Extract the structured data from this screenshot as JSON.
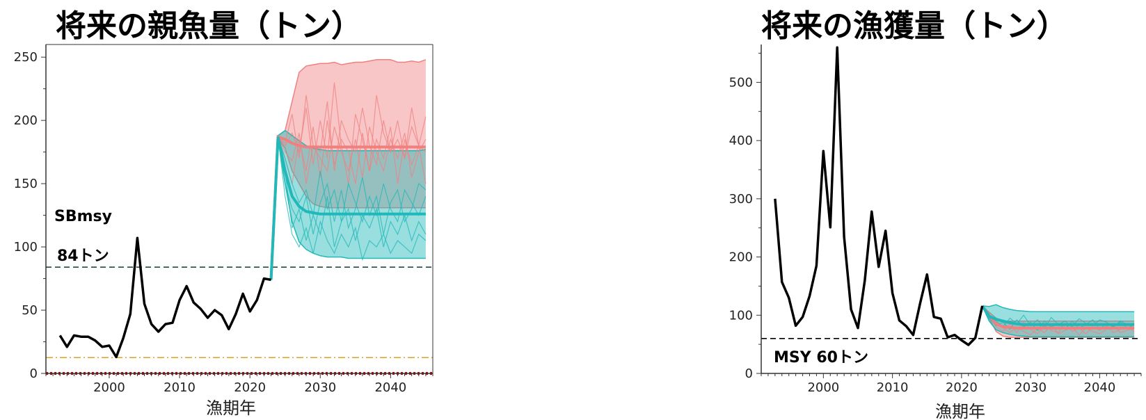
{
  "chart_data": [
    {
      "type": "line",
      "title": "将来の親魚量（トン）",
      "xlabel": "漁期年",
      "ylabel": "",
      "xlim": [
        1991,
        2046
      ],
      "ylim": [
        0,
        260
      ],
      "xticks": [
        2000,
        2010,
        2020,
        2030,
        2040
      ],
      "yticks": [
        0,
        50,
        100,
        150,
        200,
        250
      ],
      "grid": false,
      "annotations": [
        {
          "text": "SBmsy",
          "x": 1992,
          "y": 117
        },
        {
          "text": "84トン",
          "x": 1992,
          "y": 94
        }
      ],
      "ref_lines": [
        {
          "y": 84,
          "style": "dashed",
          "color": "#1f4e3d"
        },
        {
          "y": 12.5,
          "style": "dashdot",
          "color": "#e0a020"
        },
        {
          "y": 0,
          "style": "dotted",
          "color": "#cc0000"
        }
      ],
      "historical": {
        "x": [
          1993,
          1994,
          1995,
          1996,
          1997,
          1998,
          1999,
          2000,
          2001,
          2002,
          2003,
          2004,
          2005,
          2006,
          2007,
          2008,
          2009,
          2010,
          2011,
          2012,
          2013,
          2014,
          2015,
          2016,
          2017,
          2018,
          2019,
          2020,
          2021,
          2022,
          2023
        ],
        "y": [
          30,
          21,
          30,
          29,
          29,
          26,
          21,
          22,
          13,
          28,
          47,
          107,
          55,
          39,
          33,
          39,
          40,
          58,
          69,
          56,
          51,
          44,
          50,
          46,
          35,
          47,
          63,
          49,
          58,
          75,
          74
        ]
      },
      "projection_x": [
        2023,
        2024,
        2025,
        2026,
        2027,
        2028,
        2029,
        2030,
        2031,
        2032,
        2033,
        2034,
        2035,
        2036,
        2037,
        2038,
        2039,
        2040,
        2041,
        2042,
        2043,
        2044,
        2045
      ],
      "series": [
        {
          "name": "",
          "color": "#f08080",
          "median": [
            74,
            187,
            185,
            182,
            180,
            179,
            179,
            179,
            179,
            179,
            179,
            179,
            179,
            179,
            179,
            179,
            179,
            179,
            179,
            179,
            179,
            179,
            179
          ],
          "upper": [
            74,
            188,
            192,
            215,
            238,
            243,
            244,
            245,
            245,
            246,
            244,
            245,
            246,
            246,
            247,
            248,
            248,
            248,
            246,
            246,
            247,
            246,
            248
          ],
          "lower": [
            74,
            186,
            178,
            160,
            150,
            140,
            134,
            132,
            131,
            131,
            131,
            131,
            131,
            131,
            131,
            131,
            131,
            131,
            131,
            131,
            131,
            131,
            131
          ],
          "traces": [
            [
              74,
              187,
              180,
              190,
              175,
              210,
              165,
              200,
              170,
              230,
              180,
              150,
              205,
              185,
              160,
              220,
              190,
              175,
              200,
              170,
              210,
              180,
              203
            ],
            [
              74,
              187,
              170,
              150,
              185,
              160,
              195,
              155,
              200,
              165,
              185,
              175,
              150,
              190,
              160,
              185,
              170,
              195,
              150,
              185,
              165,
              180,
              150
            ],
            [
              74,
              187,
              182,
              205,
              170,
              220,
              180,
              175,
              215,
              160,
              200,
              185,
              175,
              210,
              180,
              165,
              200,
              175,
              185,
              170,
              195,
              180,
              175
            ],
            [
              74,
              187,
              175,
              168,
              190,
              150,
              180,
              170,
              160,
              195,
              175,
              160,
              185,
              155,
              195,
              175,
              160,
              185,
              170,
              190,
              155,
              175,
              185
            ]
          ]
        },
        {
          "name": "",
          "color": "#20b8b8",
          "median": [
            74,
            187,
            160,
            140,
            132,
            128,
            127,
            126,
            126,
            126,
            126,
            126,
            126,
            126,
            126,
            126,
            126,
            126,
            126,
            126,
            126,
            126,
            126
          ],
          "upper": [
            74,
            188,
            192,
            188,
            184,
            180,
            178,
            177,
            176,
            176,
            176,
            176,
            176,
            176,
            176,
            176,
            176,
            176,
            176,
            176,
            176,
            176,
            177
          ],
          "lower": [
            74,
            186,
            150,
            120,
            104,
            98,
            95,
            93,
            92,
            92,
            92,
            91,
            91,
            91,
            91,
            91,
            91,
            91,
            91,
            91,
            91,
            91,
            91
          ],
          "traces": [
            [
              74,
              187,
              150,
              130,
              120,
              140,
              110,
              135,
              150,
              120,
              145,
              115,
              130,
              155,
              125,
              140,
              110,
              135,
              145,
              120,
              130,
              150,
              145
            ],
            [
              74,
              187,
              160,
              115,
              130,
              105,
              125,
              110,
              140,
              100,
              120,
              130,
              105,
              125,
              115,
              130,
              100,
              120,
              110,
              125,
              105,
              120,
              110
            ],
            [
              74,
              187,
              170,
              150,
              135,
              145,
              125,
              160,
              130,
              145,
              120,
              150,
              135,
              120,
              140,
              125,
              150,
              130,
              120,
              145,
              135,
              125,
              140
            ],
            [
              74,
              187,
              140,
              110,
              100,
              115,
              95,
              120,
              105,
              95,
              110,
              100,
              115,
              90,
              105,
              100,
              110,
              95,
              105,
              100,
              95,
              110,
              105
            ]
          ]
        }
      ]
    },
    {
      "type": "line",
      "title": "将来の漁獲量（トン）",
      "xlabel": "漁期年",
      "ylabel": "",
      "xlim": [
        1991,
        2046
      ],
      "ylim": [
        0,
        565
      ],
      "xticks": [
        2000,
        2010,
        2020,
        2030,
        2040
      ],
      "yticks": [
        0,
        100,
        200,
        300,
        400,
        500
      ],
      "grid": false,
      "annotations": [
        {
          "text": "MSY 60トン",
          "x": 1992,
          "y": 27
        }
      ],
      "ref_lines": [
        {
          "y": 60,
          "style": "dashed",
          "color": "#000000"
        }
      ],
      "historical": {
        "x": [
          1993,
          1994,
          1995,
          1996,
          1997,
          1998,
          1999,
          2000,
          2001,
          2002,
          2003,
          2004,
          2005,
          2006,
          2007,
          2008,
          2009,
          2010,
          2011,
          2012,
          2013,
          2014,
          2015,
          2016,
          2017,
          2018,
          2019,
          2020,
          2021,
          2022,
          2023
        ],
        "y": [
          300,
          157,
          130,
          82,
          97,
          133,
          185,
          382,
          251,
          560,
          235,
          110,
          78,
          160,
          278,
          183,
          245,
          138,
          91,
          81,
          66,
          120,
          170,
          97,
          94,
          62,
          66,
          57,
          49,
          61,
          116
        ]
      },
      "projection_x": [
        2023,
        2024,
        2025,
        2026,
        2027,
        2028,
        2029,
        2030,
        2031,
        2032,
        2033,
        2034,
        2035,
        2036,
        2037,
        2038,
        2039,
        2040,
        2041,
        2042,
        2043,
        2044,
        2045
      ],
      "series": [
        {
          "name": "",
          "color": "#f08080",
          "median": [
            116,
            100,
            85,
            80,
            79,
            78,
            78,
            78,
            78,
            78,
            78,
            78,
            78,
            78,
            78,
            78,
            78,
            78,
            78,
            78,
            78,
            78,
            78
          ],
          "upper": [
            116,
            105,
            95,
            90,
            90,
            90,
            90,
            90,
            90,
            90,
            90,
            90,
            90,
            90,
            90,
            90,
            90,
            90,
            90,
            90,
            90,
            90,
            90
          ],
          "lower": [
            116,
            95,
            72,
            64,
            62,
            62,
            62,
            62,
            62,
            62,
            62,
            62,
            62,
            62,
            62,
            62,
            62,
            62,
            62,
            62,
            62,
            62,
            62
          ],
          "traces": [
            [
              116,
              100,
              80,
              72,
              85,
              70,
              88,
              75,
              68,
              82,
              74,
              70,
              86,
              72,
              78,
              68,
              80,
              74,
              82,
              70,
              76,
              80,
              72
            ],
            [
              116,
              98,
              88,
              78,
              70,
              80,
              72,
              66,
              78,
              70,
              84,
              68,
              74,
              80,
              66,
              78,
              72,
              68,
              76,
              82,
              70,
              74,
              78
            ]
          ]
        },
        {
          "name": "",
          "color": "#20b8b8",
          "median": [
            116,
            98,
            93,
            90,
            87,
            85,
            84,
            84,
            84,
            84,
            84,
            84,
            84,
            84,
            84,
            84,
            84,
            84,
            84,
            84,
            84,
            84,
            84
          ],
          "upper": [
            116,
            115,
            118,
            113,
            110,
            108,
            107,
            106,
            106,
            106,
            106,
            106,
            106,
            106,
            106,
            106,
            106,
            106,
            106,
            106,
            106,
            106,
            106
          ],
          "lower": [
            116,
            90,
            75,
            70,
            67,
            65,
            64,
            63,
            63,
            63,
            63,
            63,
            63,
            63,
            63,
            63,
            63,
            63,
            63,
            63,
            63,
            63,
            63
          ],
          "traces": [
            [
              116,
              100,
              90,
              80,
              95,
              85,
              100,
              82,
              92,
              78,
              96,
              84,
              90,
              80,
              94,
              86,
              82,
              92,
              88,
              80,
              90,
              84,
              86
            ],
            [
              116,
              95,
              82,
              88,
              76,
              92,
              80,
              88,
              74,
              90,
              80,
              86,
              76,
              90,
              78,
              84,
              92,
              76,
              86,
              80,
              88,
              78,
              84
            ]
          ]
        }
      ]
    }
  ]
}
